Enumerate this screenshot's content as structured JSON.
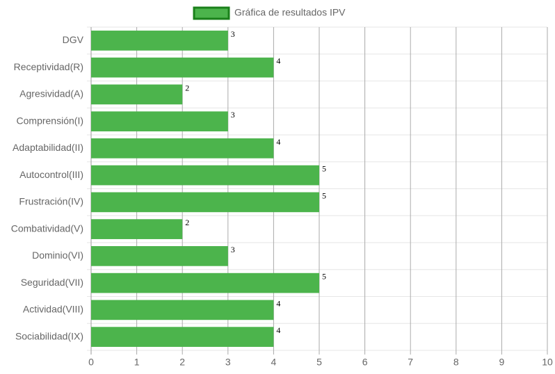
{
  "chart_data": {
    "type": "bar",
    "horizontal": true,
    "categories": [
      "DGV",
      "Receptividad(R)",
      "Agresividad(A)",
      "Comprensión(I)",
      "Adaptabilidad(II)",
      "Autocontrol(III)",
      "Frustración(IV)",
      "Combatividad(V)",
      "Dominio(VI)",
      "Seguridad(VII)",
      "Actividad(VIII)",
      "Sociabilidad(IX)"
    ],
    "series": [
      {
        "name": "Gráfica de resultados IPV",
        "color": "#4cb44c",
        "border_color": "#1a801a",
        "values": [
          3,
          4,
          2,
          3,
          4,
          5,
          5,
          2,
          3,
          5,
          4,
          4
        ]
      }
    ],
    "xlim": [
      0,
      10
    ],
    "xticks": [
      0,
      1,
      2,
      3,
      4,
      5,
      6,
      7,
      8,
      9,
      10
    ],
    "grid": true,
    "legend": "top"
  }
}
